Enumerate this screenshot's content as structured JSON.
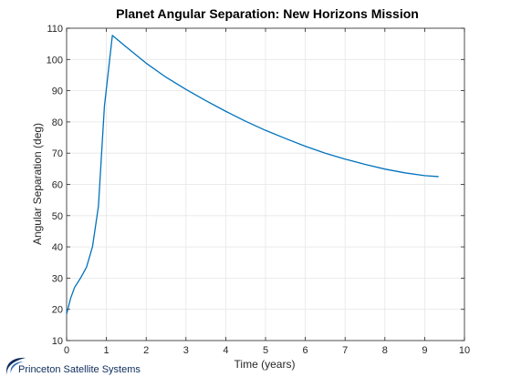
{
  "chart_data": {
    "type": "line",
    "title": "Planet Angular Separation: New Horizons Mission",
    "xlabel": "Time (years)",
    "ylabel": "Angular Separation (deg)",
    "xlim": [
      0,
      10
    ],
    "ylim": [
      10,
      110
    ],
    "xticks": [
      "0",
      "1",
      "2",
      "3",
      "4",
      "5",
      "6",
      "7",
      "8",
      "9",
      "10"
    ],
    "yticks": [
      "10",
      "20",
      "30",
      "40",
      "50",
      "60",
      "70",
      "80",
      "90",
      "100",
      "110"
    ],
    "grid": true,
    "legend": "none",
    "series": [
      {
        "color": "#0072bd",
        "x": [
          0,
          0.1,
          0.2,
          0.35,
          0.5,
          0.65,
          0.8,
          0.95,
          1.15,
          1.5,
          2.0,
          2.5,
          3.0,
          3.5,
          4.0,
          4.5,
          5.0,
          5.5,
          6.0,
          6.5,
          7.0,
          7.5,
          8.0,
          8.5,
          9.0,
          9.35
        ],
        "y": [
          18.5,
          23.5,
          27,
          30,
          33.5,
          40,
          53,
          85,
          107.7,
          104,
          98.8,
          94.3,
          90.4,
          86.8,
          83.4,
          80.2,
          77.3,
          74.7,
          72.2,
          70,
          68.1,
          66.4,
          64.9,
          63.7,
          62.8,
          62.5
        ]
      }
    ]
  },
  "branding": {
    "logo_text": "Princeton Satellite Systems"
  }
}
